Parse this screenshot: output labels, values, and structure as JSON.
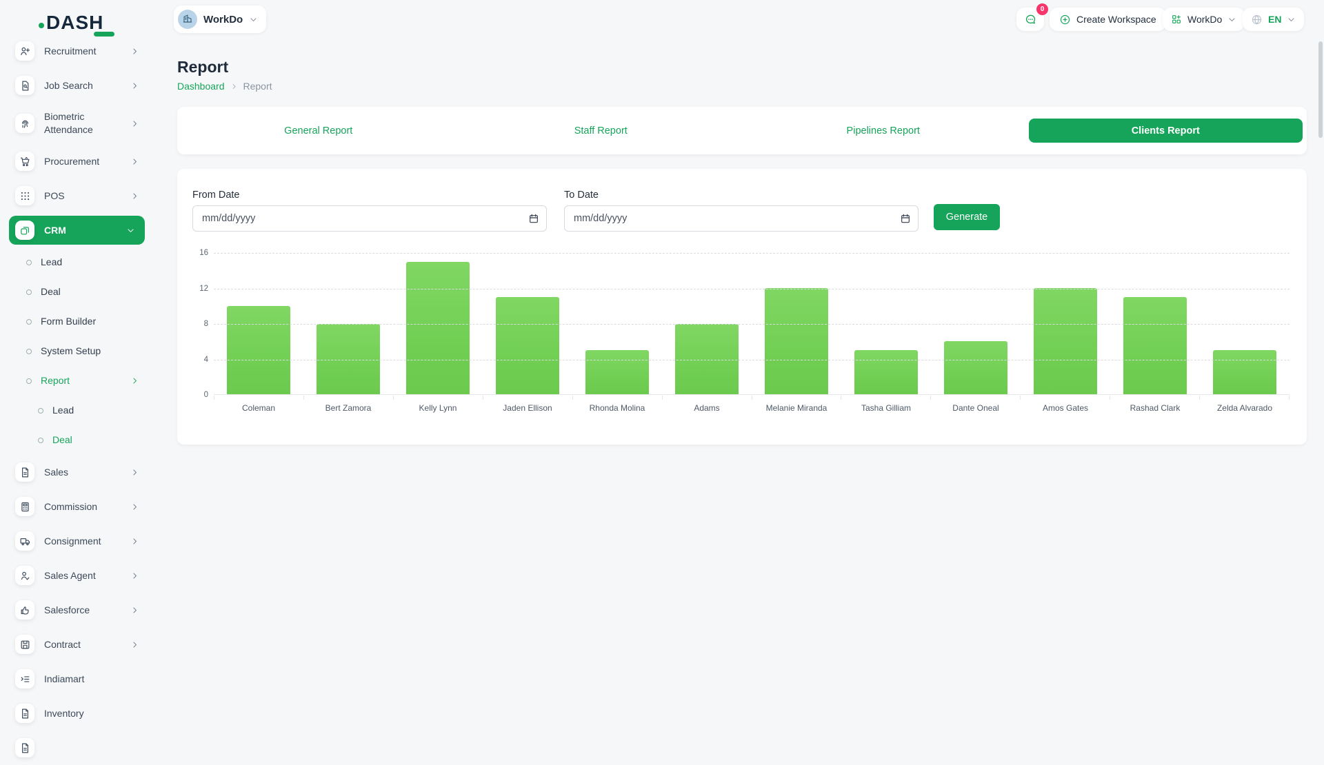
{
  "app": {
    "logo_text": "DASH"
  },
  "topbar": {
    "workspace_switcher": {
      "label": "WorkDo",
      "avatar_icon": "building-icon",
      "chevron_icon": "chevron-down-icon"
    },
    "messages": {
      "icon": "chat-icon",
      "badge": "0"
    },
    "create_workspace": {
      "icon": "plus-circle-icon",
      "label": "Create Workspace"
    },
    "app_menu": {
      "icon": "grid-plus-icon",
      "label": "WorkDo",
      "chevron_icon": "chevron-down-icon"
    },
    "language": {
      "icon": "globe-icon",
      "label": "EN",
      "chevron_icon": "chevron-down-icon"
    }
  },
  "sidebar": {
    "items": [
      {
        "label": "Recruitment",
        "icon": "user-plus-icon",
        "level": 0,
        "chevron": "right",
        "active": false
      },
      {
        "label": "Job Search",
        "icon": "file-search-icon",
        "level": 0,
        "chevron": "right",
        "active": false
      },
      {
        "label": "Biometric Attendance",
        "icon": "fingerprint-icon",
        "level": 0,
        "chevron": "right",
        "active": false
      },
      {
        "label": "Procurement",
        "icon": "cart-icon",
        "level": 0,
        "chevron": "right",
        "active": false
      },
      {
        "label": "POS",
        "icon": "grid-dots-icon",
        "level": 0,
        "chevron": "right",
        "active": false
      },
      {
        "label": "CRM",
        "icon": "overlap-squares-icon",
        "level": 0,
        "chevron": "down",
        "active": true
      },
      {
        "label": "Lead",
        "icon": "circle-bullet-icon",
        "level": 1,
        "chevron": null,
        "active": false
      },
      {
        "label": "Deal",
        "icon": "circle-bullet-icon",
        "level": 1,
        "chevron": null,
        "active": false
      },
      {
        "label": "Form Builder",
        "icon": "circle-bullet-icon",
        "level": 1,
        "chevron": null,
        "active": false
      },
      {
        "label": "System Setup",
        "icon": "circle-bullet-icon",
        "level": 1,
        "chevron": null,
        "active": false
      },
      {
        "label": "Report",
        "icon": "circle-bullet-icon",
        "level": 1,
        "chevron": "right",
        "active": true
      },
      {
        "label": "Lead",
        "icon": "circle-bullet-icon",
        "level": 2,
        "chevron": null,
        "active": false
      },
      {
        "label": "Deal",
        "icon": "circle-bullet-icon",
        "level": 2,
        "chevron": null,
        "active": true
      },
      {
        "label": "Sales",
        "icon": "file-icon",
        "level": 0,
        "chevron": "right",
        "active": false
      },
      {
        "label": "Commission",
        "icon": "calculator-icon",
        "level": 0,
        "chevron": "right",
        "active": false
      },
      {
        "label": "Consignment",
        "icon": "truck-icon",
        "level": 0,
        "chevron": "right",
        "active": false
      },
      {
        "label": "Sales Agent",
        "icon": "user-check-icon",
        "level": 0,
        "chevron": "right",
        "active": false
      },
      {
        "label": "Salesforce",
        "icon": "thumbs-up-icon",
        "level": 0,
        "chevron": "right",
        "active": false
      },
      {
        "label": "Contract",
        "icon": "floppy-icon",
        "level": 0,
        "chevron": "right",
        "active": false
      },
      {
        "label": "Indiamart",
        "icon": "list-arrow-icon",
        "level": 0,
        "chevron": null,
        "active": false
      },
      {
        "label": "Inventory",
        "icon": "file-icon",
        "level": 0,
        "chevron": null,
        "active": false
      },
      {
        "label": "",
        "icon": "file-icon",
        "level": 0,
        "chevron": null,
        "active": false
      }
    ]
  },
  "page": {
    "title": "Report",
    "breadcrumb": [
      {
        "label": "Dashboard"
      },
      {
        "label": "Report"
      }
    ]
  },
  "tabs": [
    {
      "label": "General Report",
      "active": false
    },
    {
      "label": "Staff Report",
      "active": false
    },
    {
      "label": "Pipelines Report",
      "active": false
    },
    {
      "label": "Clients Report",
      "active": true
    }
  ],
  "filters": {
    "from_label": "From Date",
    "to_label": "To Date",
    "date_placeholder": "mm/dd/yyyy",
    "calendar_icon": "calendar-icon",
    "generate_label": "Generate"
  },
  "chart_data": {
    "type": "bar",
    "title": "",
    "categories": [
      "Coleman",
      "Bert Zamora",
      "Kelly Lynn",
      "Jaden Ellison",
      "Rhonda Molina",
      "Adams",
      "Melanie Miranda",
      "Tasha Gilliam",
      "Dante Oneal",
      "Amos Gates",
      "Rashad Clark",
      "Zelda Alvarado"
    ],
    "values": [
      10,
      8,
      15,
      11,
      5,
      8,
      12,
      5,
      6,
      12,
      11,
      5
    ],
    "xlabel": "",
    "ylabel": "",
    "ylim": [
      0,
      16
    ],
    "yticks": [
      0,
      4,
      8,
      12,
      16
    ],
    "grid": "horizontal-dashed",
    "legend": "none",
    "bar_color": "#6fce51"
  },
  "colors": {
    "primary": "#16a45a",
    "bar": "#6fce51",
    "badge": "#f7356b",
    "background": "#f6f7f8"
  }
}
